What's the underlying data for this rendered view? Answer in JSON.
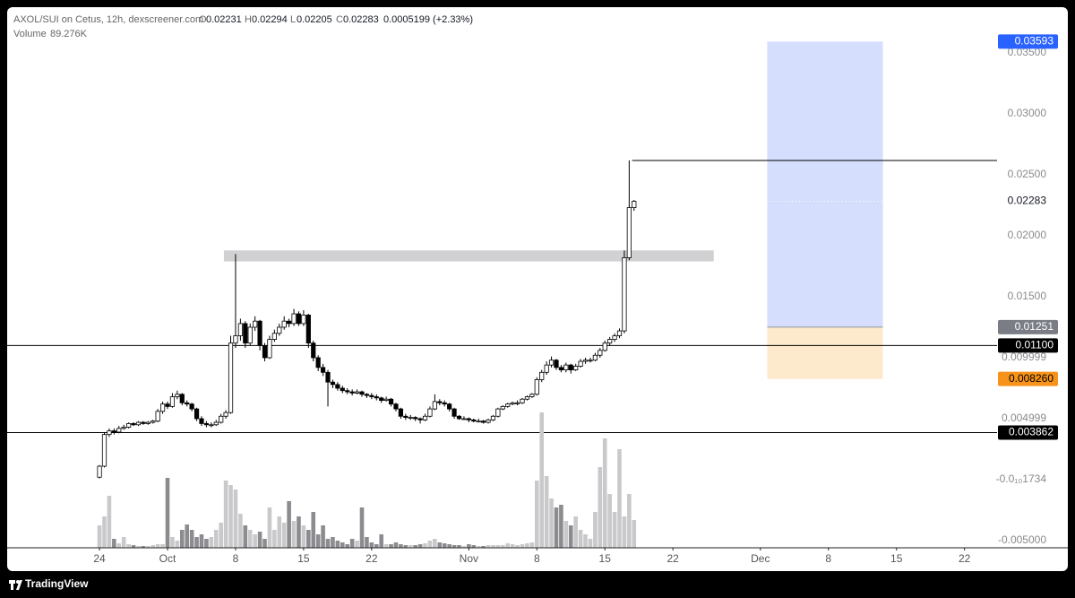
{
  "header": {
    "symbol": "AXOL/SUI on Cetus, 12h, dexscreener.com",
    "o_label": "O",
    "h_label": "H",
    "l_label": "L",
    "c_label": "C",
    "change": "0.0005199 (+2.33%)",
    "volume_label": "Volume",
    "volume": "89.276K"
  },
  "brand": "TradingView",
  "chart_data": {
    "type": "candlestick",
    "x": [
      0,
      0.5,
      1,
      1.5,
      2,
      2.5,
      3,
      3.5,
      4,
      4.5,
      5,
      5.5,
      6,
      6.5,
      7,
      7.5,
      8,
      8.5,
      9,
      9.5,
      10,
      10.5,
      11,
      11.5,
      12,
      12.5,
      13,
      13.5,
      14,
      14.5,
      15,
      15.5,
      16,
      16.5,
      17,
      17.5,
      18,
      18.5,
      19,
      19.5,
      20,
      20.5,
      21,
      21.5,
      22,
      22.5,
      23,
      23.5,
      24,
      24.5,
      25,
      25.5,
      26,
      26.5,
      27,
      27.5,
      28,
      28.5,
      29,
      29.5,
      30,
      30.5,
      31,
      31.5,
      32,
      32.5,
      33,
      33.5,
      34,
      34.5,
      35,
      35.5,
      36,
      36.5,
      37,
      37.5,
      38,
      38.5,
      39,
      39.5,
      40,
      40.5,
      41,
      41.5,
      42,
      42.5,
      43,
      43.5,
      44,
      44.5,
      45,
      45.5,
      46,
      46.5,
      47,
      47.5,
      48,
      48.5,
      49,
      49.5,
      50,
      50.5,
      51,
      51.5,
      52,
      52.5,
      53,
      53.5,
      54,
      54.5,
      55
    ],
    "ohlc": [
      [
        0.0002,
        0.0012,
        0.0001,
        0.0011
      ],
      [
        0.0011,
        0.0039,
        0.001,
        0.0037
      ],
      [
        0.0037,
        0.0042,
        0.0035,
        0.004
      ],
      [
        0.004,
        0.0042,
        0.0037,
        0.0039
      ],
      [
        0.0039,
        0.0044,
        0.0038,
        0.0042
      ],
      [
        0.0042,
        0.0045,
        0.0041,
        0.0043
      ],
      [
        0.0043,
        0.0047,
        0.0042,
        0.0046
      ],
      [
        0.0046,
        0.0047,
        0.0044,
        0.0045
      ],
      [
        0.0045,
        0.0048,
        0.0044,
        0.0047
      ],
      [
        0.0047,
        0.0048,
        0.0045,
        0.0046
      ],
      [
        0.0046,
        0.0048,
        0.0045,
        0.0047
      ],
      [
        0.0047,
        0.0049,
        0.0046,
        0.0048
      ],
      [
        0.0048,
        0.0058,
        0.0047,
        0.0056
      ],
      [
        0.0056,
        0.0064,
        0.0054,
        0.0062
      ],
      [
        0.0062,
        0.0064,
        0.0058,
        0.006
      ],
      [
        0.006,
        0.0071,
        0.0059,
        0.0068
      ],
      [
        0.0068,
        0.0073,
        0.0066,
        0.007
      ],
      [
        0.007,
        0.0071,
        0.0061,
        0.0063
      ],
      [
        0.0063,
        0.0065,
        0.006,
        0.0062
      ],
      [
        0.0062,
        0.0063,
        0.0056,
        0.0058
      ],
      [
        0.0058,
        0.0059,
        0.0048,
        0.005
      ],
      [
        0.005,
        0.0052,
        0.0044,
        0.0046
      ],
      [
        0.0046,
        0.0048,
        0.0043,
        0.0045
      ],
      [
        0.0045,
        0.0047,
        0.0043,
        0.0045
      ],
      [
        0.0045,
        0.0049,
        0.0044,
        0.0047
      ],
      [
        0.0047,
        0.0054,
        0.0046,
        0.0052
      ],
      [
        0.0052,
        0.0057,
        0.005,
        0.0055
      ],
      [
        0.0055,
        0.0118,
        0.0054,
        0.0112
      ],
      [
        0.0112,
        0.0185,
        0.0108,
        0.0118
      ],
      [
        0.0118,
        0.0132,
        0.0114,
        0.0128
      ],
      [
        0.0128,
        0.013,
        0.0108,
        0.0112
      ],
      [
        0.0112,
        0.0128,
        0.011,
        0.0125
      ],
      [
        0.0125,
        0.0134,
        0.0122,
        0.013
      ],
      [
        0.013,
        0.0131,
        0.0106,
        0.011
      ],
      [
        0.011,
        0.0112,
        0.0097,
        0.01
      ],
      [
        0.01,
        0.0118,
        0.0099,
        0.0115
      ],
      [
        0.0115,
        0.0123,
        0.0113,
        0.012
      ],
      [
        0.012,
        0.0128,
        0.0118,
        0.0125
      ],
      [
        0.0125,
        0.0134,
        0.0123,
        0.013
      ],
      [
        0.013,
        0.0132,
        0.0125,
        0.0128
      ],
      [
        0.0128,
        0.014,
        0.0126,
        0.0136
      ],
      [
        0.0136,
        0.0138,
        0.0126,
        0.0128
      ],
      [
        0.0128,
        0.0139,
        0.0126,
        0.0135
      ],
      [
        0.0135,
        0.0136,
        0.0108,
        0.0112
      ],
      [
        0.0112,
        0.0114,
        0.0097,
        0.01
      ],
      [
        0.01,
        0.0102,
        0.0089,
        0.0092
      ],
      [
        0.0092,
        0.0095,
        0.0085,
        0.0088
      ],
      [
        0.0088,
        0.009,
        0.006,
        0.008
      ],
      [
        0.008,
        0.0082,
        0.0075,
        0.0078
      ],
      [
        0.0078,
        0.008,
        0.0073,
        0.0075
      ],
      [
        0.0075,
        0.0077,
        0.0071,
        0.0073
      ],
      [
        0.0073,
        0.0075,
        0.007,
        0.0072
      ],
      [
        0.0072,
        0.0074,
        0.0069,
        0.0071
      ],
      [
        0.0071,
        0.0074,
        0.007,
        0.0072
      ],
      [
        0.0072,
        0.0073,
        0.0068,
        0.007
      ],
      [
        0.007,
        0.0071,
        0.0067,
        0.0069
      ],
      [
        0.0069,
        0.0071,
        0.0066,
        0.0068
      ],
      [
        0.0068,
        0.007,
        0.0065,
        0.0067
      ],
      [
        0.0067,
        0.0068,
        0.0063,
        0.0065
      ],
      [
        0.0065,
        0.0068,
        0.0064,
        0.0066
      ],
      [
        0.0066,
        0.0067,
        0.006,
        0.0062
      ],
      [
        0.0062,
        0.0063,
        0.0056,
        0.0058
      ],
      [
        0.0058,
        0.0059,
        0.005,
        0.0052
      ],
      [
        0.0052,
        0.0054,
        0.0049,
        0.0051
      ],
      [
        0.0051,
        0.0053,
        0.0049,
        0.0051
      ],
      [
        0.0051,
        0.0052,
        0.0048,
        0.005
      ],
      [
        0.005,
        0.0051,
        0.0046,
        0.0049
      ],
      [
        0.0049,
        0.0054,
        0.0048,
        0.0052
      ],
      [
        0.0052,
        0.006,
        0.0051,
        0.0058
      ],
      [
        0.0058,
        0.007,
        0.0057,
        0.0064
      ],
      [
        0.0064,
        0.0066,
        0.0061,
        0.0063
      ],
      [
        0.0063,
        0.0065,
        0.006,
        0.0062
      ],
      [
        0.0062,
        0.0063,
        0.0056,
        0.0058
      ],
      [
        0.0058,
        0.0059,
        0.005,
        0.0052
      ],
      [
        0.0052,
        0.0053,
        0.0049,
        0.005
      ],
      [
        0.005,
        0.0052,
        0.0049,
        0.005
      ],
      [
        0.005,
        0.0051,
        0.0047,
        0.0049
      ],
      [
        0.0049,
        0.005,
        0.0047,
        0.0048
      ],
      [
        0.0048,
        0.005,
        0.0047,
        0.0048
      ],
      [
        0.0048,
        0.0049,
        0.0046,
        0.0047
      ],
      [
        0.0047,
        0.005,
        0.0046,
        0.0049
      ],
      [
        0.0049,
        0.0053,
        0.0048,
        0.0052
      ],
      [
        0.0052,
        0.0059,
        0.0051,
        0.0058
      ],
      [
        0.0058,
        0.0061,
        0.0057,
        0.006
      ],
      [
        0.006,
        0.0063,
        0.0059,
        0.0062
      ],
      [
        0.0062,
        0.0064,
        0.0061,
        0.0063
      ],
      [
        0.0063,
        0.0065,
        0.0061,
        0.0063
      ],
      [
        0.0063,
        0.0067,
        0.0062,
        0.0066
      ],
      [
        0.0066,
        0.0069,
        0.0065,
        0.0068
      ],
      [
        0.0068,
        0.0071,
        0.0067,
        0.007
      ],
      [
        0.007,
        0.0084,
        0.0069,
        0.0082
      ],
      [
        0.0082,
        0.009,
        0.008,
        0.0088
      ],
      [
        0.0088,
        0.0097,
        0.0086,
        0.0094
      ],
      [
        0.0094,
        0.0101,
        0.0092,
        0.0098
      ],
      [
        0.0098,
        0.0099,
        0.009,
        0.0092
      ],
      [
        0.0092,
        0.0094,
        0.0088,
        0.009
      ],
      [
        0.009,
        0.0096,
        0.0088,
        0.0094
      ],
      [
        0.0094,
        0.0095,
        0.0087,
        0.009
      ],
      [
        0.009,
        0.0095,
        0.0089,
        0.0093
      ],
      [
        0.0093,
        0.0099,
        0.0092,
        0.0097
      ],
      [
        0.0097,
        0.01,
        0.0095,
        0.0098
      ],
      [
        0.0098,
        0.01,
        0.0096,
        0.0098
      ],
      [
        0.0098,
        0.0104,
        0.0097,
        0.0102
      ],
      [
        0.0102,
        0.0108,
        0.01,
        0.0106
      ],
      [
        0.0106,
        0.0114,
        0.0105,
        0.0112
      ],
      [
        0.0112,
        0.0117,
        0.011,
        0.0115
      ],
      [
        0.0115,
        0.012,
        0.0113,
        0.0118
      ],
      [
        0.0118,
        0.0124,
        0.0116,
        0.0122
      ],
      [
        0.0122,
        0.0188,
        0.012,
        0.0182
      ],
      [
        0.0182,
        0.02618,
        0.018,
        0.02231
      ],
      [
        0.02231,
        0.02294,
        0.02205,
        0.02283
      ]
    ],
    "volume": [
      72000,
      100800,
      167040,
      28800,
      14400,
      34560,
      11520,
      8640,
      5760,
      5760,
      5760,
      8640,
      11520,
      11520,
      224640,
      34560,
      23040,
      57600,
      74880,
      57600,
      34560,
      43200,
      28800,
      34560,
      57600,
      80640,
      216000,
      201600,
      187200,
      109440,
      72000,
      57600,
      43200,
      51840,
      28800,
      129600,
      57600,
      100800,
      80640,
      149760,
      86400,
      100800,
      72000,
      57600,
      115200,
      43200,
      72000,
      28800,
      34560,
      23040,
      17280,
      11520,
      28800,
      23040,
      129600,
      34560,
      17280,
      11520,
      43200,
      11520,
      11520,
      17280,
      11520,
      8640,
      8640,
      8640,
      11520,
      14400,
      23040,
      28800,
      17280,
      14400,
      11520,
      8640,
      8640,
      5760,
      11520,
      8640,
      5760,
      5760,
      8640,
      8640,
      8640,
      8640,
      14400,
      11520,
      8640,
      11520,
      14400,
      17280,
      216000,
      434880,
      230400,
      158400,
      129600,
      138240,
      86400,
      72000,
      100800,
      57600,
      43200,
      28800,
      115200,
      259200,
      351360,
      172800,
      115200,
      316800,
      100800,
      172800,
      89276
    ],
    "xlim": [
      -9.5,
      92.35
    ],
    "xticks": [
      {
        "value": 0,
        "label": "24"
      },
      {
        "value": 7,
        "label": "Oct"
      },
      {
        "value": 14,
        "label": "8"
      },
      {
        "value": 21,
        "label": "15"
      },
      {
        "value": 28,
        "label": "22"
      },
      {
        "value": 38,
        "label": "Nov"
      },
      {
        "value": 45,
        "label": "8"
      },
      {
        "value": 52,
        "label": "15"
      },
      {
        "value": 59,
        "label": "22"
      },
      {
        "value": 68,
        "label": "Dec"
      },
      {
        "value": 75,
        "label": "8"
      },
      {
        "value": 82,
        "label": "15"
      },
      {
        "value": 89,
        "label": "22"
      }
    ],
    "ylim": [
      -0.00559,
      0.03875
    ],
    "yticks": [
      {
        "value": 0.035,
        "label": "0.03500"
      },
      {
        "value": 0.03,
        "label": "0.03000"
      },
      {
        "value": 0.025,
        "label": "0.02500"
      },
      {
        "value": 0.02,
        "label": "0.02000"
      },
      {
        "value": 0.015,
        "label": "0.01500"
      },
      0.009999,
      0.004999,
      {
        "value": -1.734e-11,
        "label": "-0.0₁₀1734"
      },
      {
        "value": -0.005,
        "label": "-0.005000"
      }
    ],
    "grid": false,
    "up_color": "#ffffff",
    "down_color": "#000000",
    "volume_up_color": "#c9c9cc",
    "volume_down_color": "#8c8c90",
    "hlines": [
      {
        "value": 0.011,
        "label": "0.01100",
        "color": "#000000"
      },
      {
        "value": 0.003862,
        "color": "#000000"
      }
    ],
    "ray": {
      "value": 0.02618,
      "x_start": 54.8,
      "color": "#000000"
    },
    "zone": {
      "low": 0.0179,
      "high": 0.0188,
      "x_start": 12.8,
      "x_end": 63.2,
      "color": "#d1d1d3"
    },
    "position": {
      "x_start": 68.7,
      "x_end": 80.6,
      "entry": 0.01251,
      "target": 0.03593,
      "stop": {
        "value": 0.00826,
        "label": "0.008260"
      },
      "target_color": "#d5defc",
      "stop_color": "#fde9cb",
      "target_label_color": "#2962ff",
      "entry_label_color": "#7b7d86",
      "stop_label_color": "#f7931a"
    }
  }
}
